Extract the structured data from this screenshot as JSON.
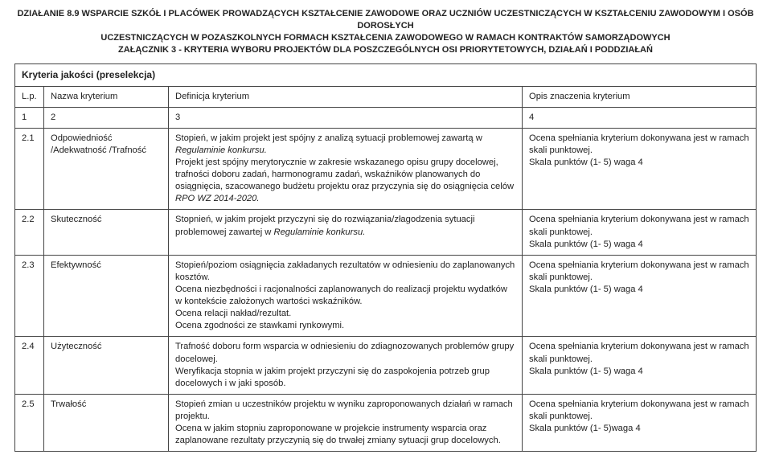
{
  "header": {
    "line1": "DZIAŁANIE 8.9 WSPARCIE SZKÓŁ I PLACÓWEK PROWADZĄCYCH KSZTAŁCENIE ZAWODOWE ORAZ UCZNIÓW UCZESTNICZĄCYCH W KSZTAŁCENIU ZAWODOWYM I OSÓB DOROSŁYCH",
    "line2": "UCZESTNICZĄCYCH W POZASZKOLNYCH FORMACH KSZTAŁCENIA ZAWODOWEGO W RAMACH KONTRAKTÓW SAMORZĄDOWYCH",
    "line3": "ZAŁĄCZNIK 3 - KRYTERIA WYBORU PROJEKTÓW DLA POSZCZEGÓLNYCH OSI PRIORYTETOWYCH, DZIAŁAŃ I PODDZIAŁAŃ"
  },
  "section_title": "Kryteria jakości (preselekcja)",
  "columns": {
    "lp": "L.p.",
    "name": "Nazwa kryterium",
    "def": "Definicja kryterium",
    "opis": "Opis znaczenia kryterium"
  },
  "colnums": {
    "c1": "1",
    "c2": "2",
    "c3": "3",
    "c4": "4"
  },
  "rows": {
    "r1": {
      "lp": "2.1",
      "name": "Odpowiedniość /Adekwatność /Trafność",
      "def_a": "Stopień, w jakim projekt jest spójny z analizą sytuacji problemowej zawartą w ",
      "def_it": "Regulaminie konkursu.",
      "def_b": "\nProjekt jest spójny merytorycznie w zakresie wskazanego opisu grupy docelowej, trafności doboru zadań, harmonogramu zadań, wskaźników planowanych do osiągnięcia, szacowanego budżetu projektu oraz przyczynia się do osiągnięcia celów ",
      "def_it2": "RPO WZ 2014-2020.",
      "opis": "Ocena spełniania kryterium dokonywana jest w ramach skali punktowej.\nSkala punktów (1- 5) waga 4"
    },
    "r2": {
      "lp": "2.2",
      "name": "Skuteczność",
      "def_a": "Stopnień, w jakim projekt przyczyni się do rozwiązania/złagodzenia sytuacji problemowej zawartej w ",
      "def_it": "Regulaminie konkursu.",
      "opis": "Ocena spełniania kryterium dokonywana jest w ramach skali punktowej.\nSkala punktów (1- 5) waga 4"
    },
    "r3": {
      "lp": "2.3",
      "name": "Efektywność",
      "def": "Stopień/poziom osiągnięcia zakładanych rezultatów w odniesieniu do zaplanowanych kosztów.\nOcena niezbędności i racjonalności zaplanowanych do realizacji projektu wydatków w kontekście założonych wartości wskaźników.\nOcena relacji nakład/rezultat.\nOcena zgodności ze stawkami rynkowymi.",
      "opis": "Ocena spełniania kryterium dokonywana jest w ramach skali punktowej.\nSkala punktów (1- 5) waga 4"
    },
    "r4": {
      "lp": "2.4",
      "name": "Użyteczność",
      "def": "Trafność doboru form wsparcia w odniesieniu do zdiagnozowanych problemów grupy docelowej.\nWeryfikacja stopnia w jakim projekt przyczyni się do zaspokojenia potrzeb grup docelowych i w jaki sposób.",
      "opis": "Ocena spełniania kryterium dokonywana jest w ramach skali punktowej.\nSkala punktów (1- 5) waga 4"
    },
    "r5": {
      "lp": "2.5",
      "name": "Trwałość",
      "def": "Stopień zmian u uczestników projektu w wyniku zaproponowanych działań w ramach projektu.\nOcena w jakim stopniu zaproponowane w projekcie instrumenty wsparcia oraz zaplanowane rezultaty przyczynią się do trwałej zmiany sytuacji grup docelowych.",
      "opis": "Ocena spełniania kryterium dokonywana jest w ramach skali punktowej.\nSkala punktów (1- 5)waga 4"
    }
  }
}
